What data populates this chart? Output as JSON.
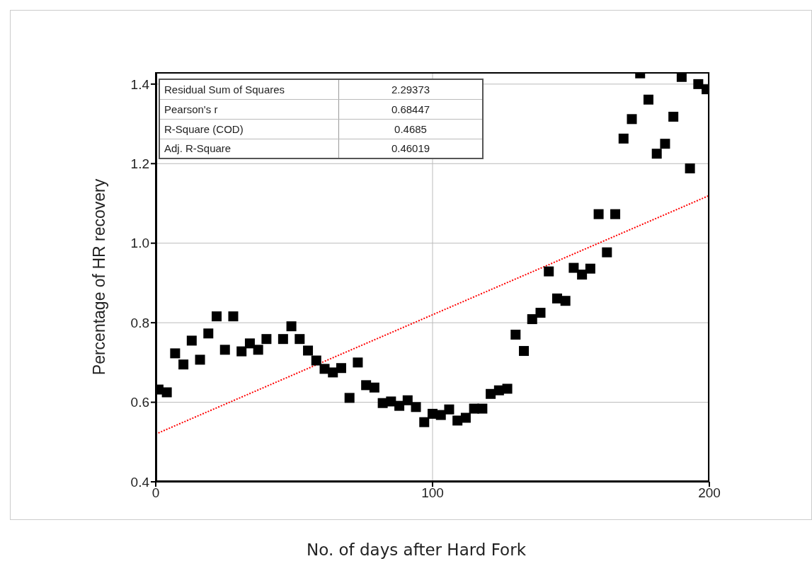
{
  "chart_data": {
    "type": "scatter",
    "xlabel": "No. of days after Hard Fork",
    "ylabel": "Percentage of HR recovery",
    "xlim": [
      0,
      200
    ],
    "xticks": [
      0,
      100,
      200
    ],
    "ylim": [
      0.4,
      1.43
    ],
    "yticks": [
      0.4,
      {
        "value": 0.6,
        "label": "0.6"
      },
      {
        "value": 0.8,
        "label": "0.8"
      },
      {
        "value": 1.0,
        "label": "1.0"
      },
      {
        "value": 1.2,
        "label": "1.2"
      },
      {
        "value": 1.4,
        "label": "1.4"
      }
    ],
    "grid": true,
    "line_style": "dotted",
    "annotations": [
      "Residual Sum of Squares",
      "2.29373",
      "Pearson's r",
      "0.68447",
      "R-Square (COD)",
      "0.4685",
      "Adj. R-Square",
      "0.46019"
    ],
    "series": [
      {
        "color": "#000000",
        "marker": "square",
        "x": [
          1,
          4,
          7,
          10,
          13,
          16,
          19,
          22,
          25,
          28,
          31,
          34,
          37,
          40,
          46,
          49,
          52,
          55,
          58,
          61,
          64,
          67,
          70,
          73,
          76,
          79,
          82,
          85,
          88,
          91,
          94,
          97,
          100,
          103,
          106,
          109,
          112,
          115,
          118,
          121,
          124,
          127,
          130,
          133,
          136,
          139,
          142,
          145,
          148,
          151,
          154,
          157,
          160,
          163,
          166,
          169,
          172,
          175,
          178,
          181,
          184,
          187,
          190,
          193,
          196,
          199
        ],
        "values": [
          0.632,
          0.625,
          0.723,
          0.695,
          0.755,
          0.707,
          0.773,
          0.816,
          0.732,
          0.816,
          0.728,
          0.748,
          0.732,
          0.759,
          0.759,
          0.791,
          0.759,
          0.73,
          0.705,
          0.684,
          0.675,
          0.686,
          0.611,
          0.7,
          0.643,
          0.637,
          0.598,
          0.602,
          0.591,
          0.605,
          0.588,
          0.55,
          0.571,
          0.568,
          0.582,
          0.554,
          0.561,
          0.584,
          0.584,
          0.621,
          0.63,
          0.634,
          0.77,
          0.729,
          0.809,
          0.825,
          0.929,
          0.861,
          0.855,
          0.938,
          0.921,
          0.936,
          1.073,
          0.977,
          1.073,
          1.263,
          1.312,
          1.427,
          1.361,
          1.225,
          1.25,
          1.318,
          1.418,
          1.188,
          1.4,
          1.387
        ]
      },
      {
        "type": "line",
        "color": "#ff0000",
        "x": [
          0,
          200
        ],
        "values": [
          0.52,
          1.12
        ]
      }
    ]
  }
}
